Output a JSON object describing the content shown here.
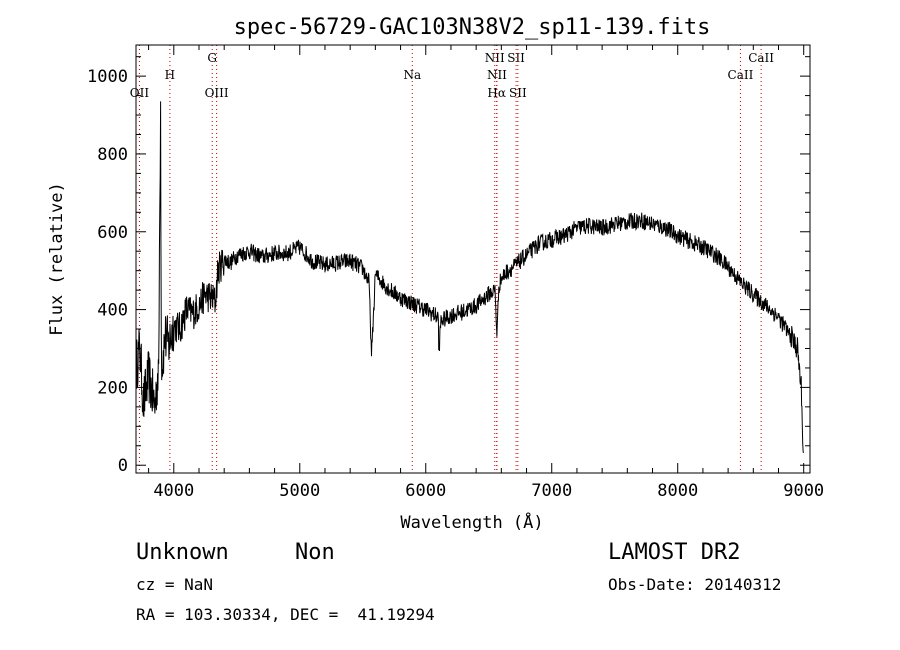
{
  "info": {
    "class": "Unknown",
    "subclass": "Non",
    "survey": "LAMOST DR2",
    "cz": "cz = NaN",
    "obs_date": "Obs-Date: 20140312",
    "coords": "RA = 103.30334, DEC =  41.19294"
  },
  "chart_data": {
    "type": "line",
    "title": "spec-56729-GAC103N38V2_sp11-139.fits",
    "xlabel": "Wavelength (Å)",
    "ylabel": "Flux (relative)",
    "xlim": [
      3700,
      9050
    ],
    "ylim": [
      -20,
      1080
    ],
    "xticks": [
      4000,
      5000,
      6000,
      7000,
      8000,
      9000
    ],
    "yticks": [
      0,
      200,
      400,
      600,
      800,
      1000
    ],
    "line_color": "#000000",
    "marker_color": "#cc0000",
    "spectral_lines": [
      {
        "label": "OII",
        "wavelength": 3727,
        "row": 3
      },
      {
        "label": "H",
        "wavelength": 3969,
        "row": 2
      },
      {
        "label": "G",
        "wavelength": 4305,
        "row": 1
      },
      {
        "label": "OIII",
        "wavelength": 4340,
        "row": 3
      },
      {
        "label": "Na",
        "wavelength": 5893,
        "row": 2
      },
      {
        "label": "NII",
        "wavelength": 6548,
        "row": 1
      },
      {
        "label": "NII",
        "wavelength": 6565,
        "row": 2
      },
      {
        "label": "Hα",
        "wavelength": 6563,
        "row": 3
      },
      {
        "label": "SII",
        "wavelength": 6717,
        "row": 1
      },
      {
        "label": "SII",
        "wavelength": 6731,
        "row": 3
      },
      {
        "label": "CaII",
        "wavelength": 8498,
        "row": 2
      },
      {
        "label": "CaII",
        "wavelength": 8662,
        "row": 1
      }
    ],
    "series": [
      {
        "x": [
          3700,
          3730,
          3760,
          3800,
          3850,
          3880,
          3895,
          3900,
          3905,
          3930,
          3960,
          4000,
          4050,
          4100,
          4150,
          4200,
          4250,
          4300,
          4330,
          4350,
          4400,
          4450,
          4500,
          4600,
          4700,
          4800,
          4900,
          5000,
          5100,
          5200,
          5300,
          5400,
          5500,
          5550,
          5570,
          5600,
          5700,
          5800,
          5900,
          6000,
          6100,
          6100,
          6120,
          6200,
          6300,
          6400,
          6500,
          6550,
          6565,
          6580,
          6600,
          6650,
          6700,
          6800,
          6900,
          7000,
          7100,
          7200,
          7300,
          7400,
          7500,
          7600,
          7700,
          7800,
          7900,
          8000,
          8100,
          8200,
          8300,
          8400,
          8500,
          8600,
          8700,
          8800,
          8900,
          8950,
          8980,
          9000
        ],
        "y": [
          250,
          300,
          160,
          230,
          150,
          260,
          935,
          340,
          250,
          330,
          310,
          360,
          350,
          400,
          390,
          410,
          440,
          430,
          420,
          500,
          530,
          520,
          540,
          550,
          535,
          545,
          545,
          560,
          525,
          515,
          520,
          525,
          505,
          470,
          280,
          490,
          455,
          430,
          415,
          400,
          380,
          270,
          370,
          385,
          395,
          410,
          440,
          450,
          330,
          460,
          480,
          500,
          510,
          540,
          570,
          580,
          590,
          610,
          615,
          610,
          620,
          625,
          630,
          620,
          610,
          590,
          575,
          560,
          540,
          510,
          470,
          440,
          410,
          380,
          330,
          300,
          200,
          0
        ],
        "noise": 22
      }
    ]
  }
}
